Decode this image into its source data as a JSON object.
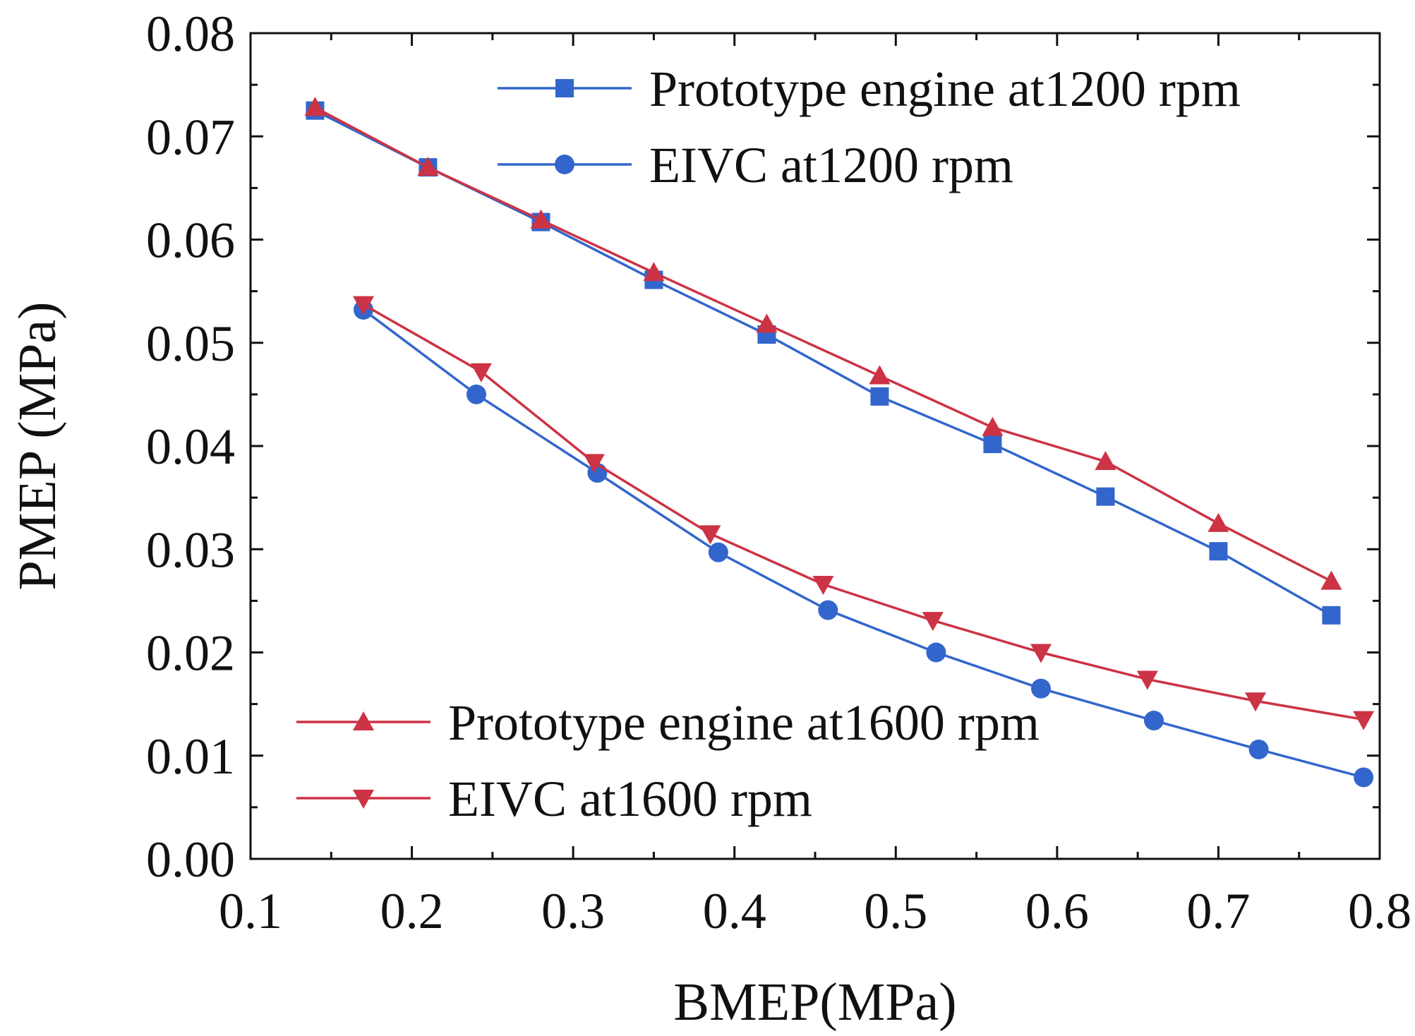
{
  "chart_data": {
    "type": "line",
    "title": "",
    "xlabel": "BMEP(MPa)",
    "ylabel": "PMEP (MPa)",
    "xlim": [
      0.1,
      0.8
    ],
    "ylim": [
      0.0,
      0.08
    ],
    "xticks": [
      0.1,
      0.2,
      0.3,
      0.4,
      0.5,
      0.6,
      0.7,
      0.8
    ],
    "xtick_labels": [
      "0.1",
      "0.2",
      "0.3",
      "0.4",
      "0.5",
      "0.6",
      "0.7",
      "0.8"
    ],
    "yticks": [
      0.0,
      0.01,
      0.02,
      0.03,
      0.04,
      0.05,
      0.06,
      0.07,
      0.08
    ],
    "ytick_labels": [
      "0.00",
      "0.01",
      "0.02",
      "0.03",
      "0.04",
      "0.05",
      "0.06",
      "0.07",
      "0.08"
    ],
    "grid": false,
    "series": [
      {
        "name": "Prototype engine at1200 rpm",
        "color": "#3366cc",
        "marker": "square",
        "legend_group": "top",
        "x": [
          0.14,
          0.21,
          0.28,
          0.35,
          0.42,
          0.49,
          0.56,
          0.63,
          0.7,
          0.77
        ],
        "y": [
          0.0725,
          0.067,
          0.0617,
          0.0561,
          0.0508,
          0.0448,
          0.0402,
          0.0351,
          0.0298,
          0.0236
        ]
      },
      {
        "name": "EIVC at1200 rpm",
        "color": "#3366cc",
        "marker": "circle",
        "legend_group": "top",
        "x": [
          0.17,
          0.24,
          0.315,
          0.39,
          0.458,
          0.525,
          0.59,
          0.66,
          0.725,
          0.79
        ],
        "y": [
          0.0532,
          0.045,
          0.0374,
          0.0297,
          0.0241,
          0.02,
          0.0165,
          0.0134,
          0.0106,
          0.0079
        ]
      },
      {
        "name": "Prototype engine at1600 rpm",
        "color": "#cc3344",
        "marker": "triangle-up",
        "legend_group": "bottom",
        "x": [
          0.14,
          0.21,
          0.28,
          0.35,
          0.42,
          0.49,
          0.56,
          0.63,
          0.7,
          0.77
        ],
        "y": [
          0.0728,
          0.067,
          0.0619,
          0.0568,
          0.0518,
          0.0468,
          0.0418,
          0.0385,
          0.0325,
          0.0269
        ]
      },
      {
        "name": "EIVC at1600 rpm",
        "color": "#cc3344",
        "marker": "triangle-down",
        "legend_group": "bottom",
        "x": [
          0.17,
          0.243,
          0.313,
          0.385,
          0.455,
          0.523,
          0.59,
          0.656,
          0.723,
          0.79
        ],
        "y": [
          0.0537,
          0.0472,
          0.0384,
          0.0315,
          0.0266,
          0.0231,
          0.02,
          0.0174,
          0.0153,
          0.0135
        ]
      }
    ]
  }
}
